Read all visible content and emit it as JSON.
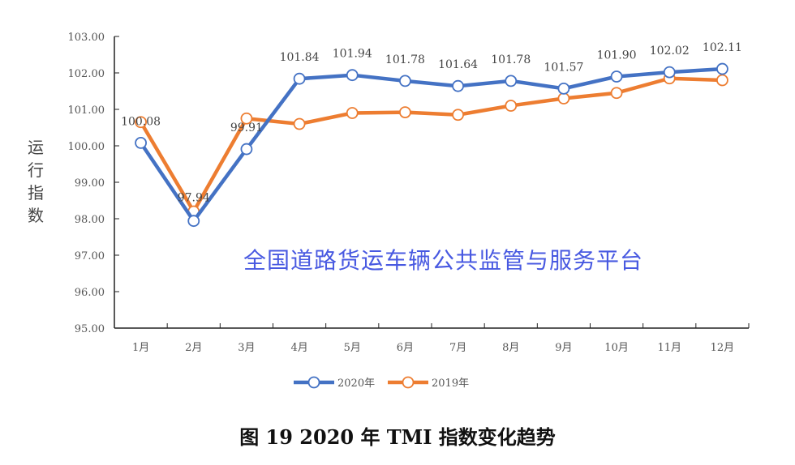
{
  "chart_data": {
    "type": "line",
    "title": "图 19  2020 年 TMI 指数变化趋势",
    "ylabel": "运行指数",
    "xlabel": "",
    "ylim": [
      95,
      103
    ],
    "yticks": [
      "95.00",
      "96.00",
      "97.00",
      "98.00",
      "99.00",
      "100.00",
      "101.00",
      "102.00",
      "103.00"
    ],
    "categories": [
      "1月",
      "2月",
      "3月",
      "4月",
      "5月",
      "6月",
      "7月",
      "8月",
      "9月",
      "10月",
      "11月",
      "12月"
    ],
    "grid": false,
    "legend": "bottom",
    "series": [
      {
        "name": "2020年",
        "color": "#4472C4",
        "values": [
          100.08,
          97.94,
          99.91,
          101.84,
          101.94,
          101.78,
          101.64,
          101.78,
          101.57,
          101.9,
          102.02,
          102.11
        ],
        "labels": [
          "100.08",
          "97.94",
          "99.91",
          "101.84",
          "101.94",
          "101.78",
          "101.64",
          "101.78",
          "101.57",
          "101.90",
          "102.02",
          "102.11"
        ]
      },
      {
        "name": "2019年",
        "color": "#ED7D31",
        "values": [
          100.65,
          98.2,
          100.75,
          100.6,
          100.9,
          100.92,
          100.85,
          101.1,
          101.3,
          101.45,
          101.85,
          101.8
        ]
      }
    ]
  },
  "watermark": "全国道路货运车辆公共监管与服务平台"
}
